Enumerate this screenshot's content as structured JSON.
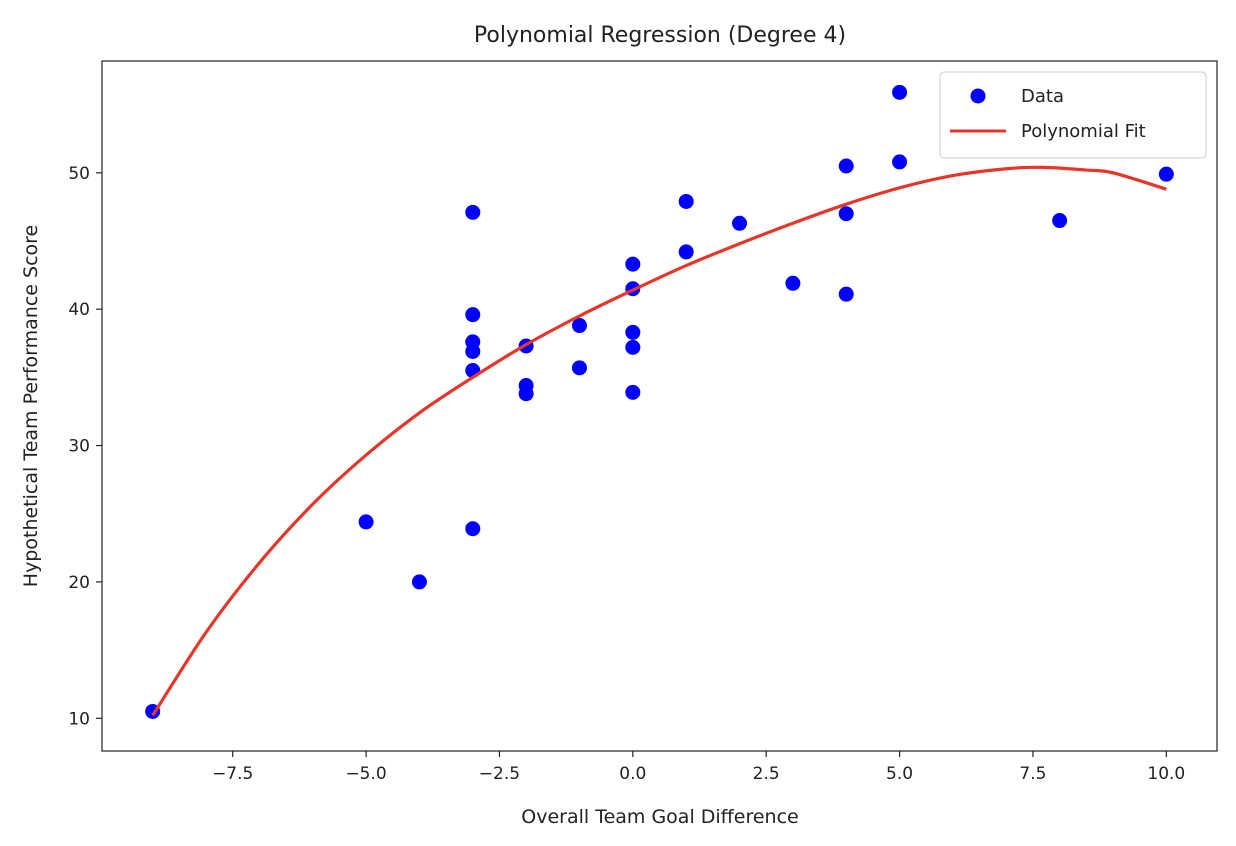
{
  "chart_data": {
    "type": "scatter",
    "title": "Polynomial Regression (Degree 4)",
    "xlabel": "Overall Team Goal Difference",
    "ylabel": "Hypothetical Team Performance Score",
    "xlim": [
      -9.95,
      10.95
    ],
    "ylim": [
      7.6,
      58.2
    ],
    "x_ticks": [
      -7.5,
      -5.0,
      -2.5,
      0.0,
      2.5,
      5.0,
      7.5,
      10.0
    ],
    "x_tick_labels": [
      "−7.5",
      "−5.0",
      "−2.5",
      "0.0",
      "2.5",
      "5.0",
      "7.5",
      "10.0"
    ],
    "y_ticks": [
      10,
      20,
      30,
      40,
      50
    ],
    "y_tick_labels": [
      "10",
      "20",
      "30",
      "40",
      "50"
    ],
    "grid": false,
    "legend_position": "top-right",
    "series": [
      {
        "name": "Data",
        "kind": "scatter",
        "color": "#0000ff",
        "points": [
          [
            -9,
            10.5
          ],
          [
            -5,
            24.4
          ],
          [
            -4,
            20.0
          ],
          [
            -3,
            47.1
          ],
          [
            -3,
            39.6
          ],
          [
            -3,
            37.6
          ],
          [
            -3,
            36.9
          ],
          [
            -3,
            35.5
          ],
          [
            -3,
            23.9
          ],
          [
            -2,
            37.3
          ],
          [
            -2,
            34.4
          ],
          [
            -2,
            33.8
          ],
          [
            -1,
            38.8
          ],
          [
            -1,
            35.7
          ],
          [
            0,
            43.3
          ],
          [
            0,
            41.5
          ],
          [
            0,
            38.3
          ],
          [
            0,
            37.2
          ],
          [
            0,
            33.9
          ],
          [
            1,
            47.9
          ],
          [
            1,
            44.2
          ],
          [
            2,
            46.3
          ],
          [
            3,
            41.9
          ],
          [
            4,
            50.5
          ],
          [
            4,
            47.0
          ],
          [
            4,
            41.1
          ],
          [
            5,
            55.9
          ],
          [
            5,
            50.8
          ],
          [
            8,
            46.5
          ],
          [
            10,
            49.9
          ]
        ]
      },
      {
        "name": "Polynomial Fit",
        "kind": "line",
        "color": "#e8352a",
        "points": [
          [
            -9,
            10.2
          ],
          [
            -8,
            16.3
          ],
          [
            -7,
            21.4
          ],
          [
            -6,
            25.7
          ],
          [
            -5,
            29.3
          ],
          [
            -4,
            32.4
          ],
          [
            -3,
            35.0
          ],
          [
            -2,
            37.4
          ],
          [
            -1,
            39.5
          ],
          [
            0,
            41.4
          ],
          [
            1,
            43.2
          ],
          [
            2,
            44.8
          ],
          [
            3,
            46.3
          ],
          [
            4,
            47.7
          ],
          [
            5,
            48.9
          ],
          [
            6,
            49.8
          ],
          [
            7,
            50.3
          ],
          [
            7.7,
            50.4
          ],
          [
            8.5,
            50.2
          ],
          [
            9,
            50.0
          ],
          [
            10,
            48.8
          ]
        ]
      }
    ]
  }
}
